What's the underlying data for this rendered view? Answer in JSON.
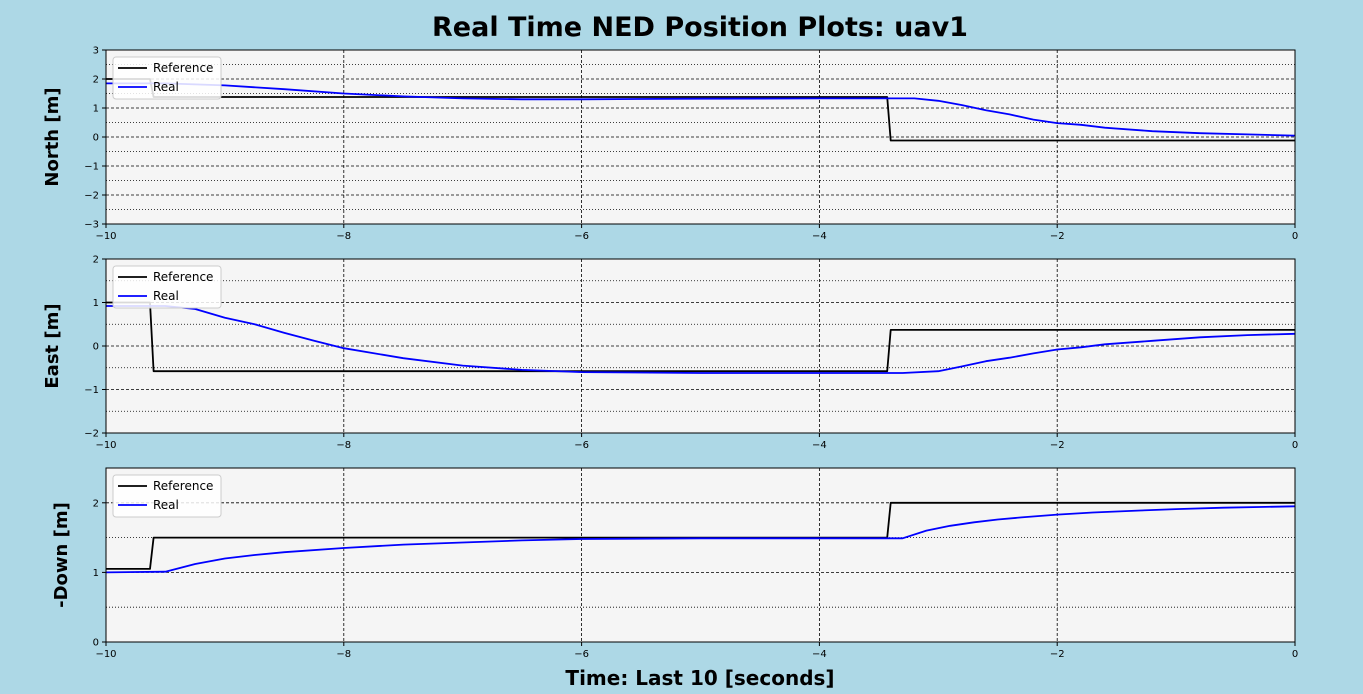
{
  "figure": {
    "title": "Real Time NED Position Plots: uav1",
    "xlabel": "Time: Last 10 [seconds]",
    "background": "#add8e6",
    "axes_background": "#f5f5f5"
  },
  "chart_data": [
    {
      "type": "line",
      "ylabel": "North [m]",
      "xlim": [
        -10,
        0
      ],
      "ylim": [
        -3,
        3
      ],
      "xticks": [
        -10,
        -8,
        -6,
        -4,
        -2,
        0
      ],
      "xtick_labels": [
        "−10",
        "−8",
        "−6",
        "−4",
        "−2",
        "0"
      ],
      "yticks": [
        -3,
        -2,
        -1,
        0,
        1,
        2,
        3
      ],
      "ytick_labels": [
        "−3",
        "−2",
        "−1",
        "0",
        "1",
        "2",
        "3"
      ],
      "major_ygrid": [
        -2,
        -1,
        0,
        1,
        2
      ],
      "minor_ygrid": [
        -2.5,
        -1.5,
        -0.5,
        0.5,
        1.5,
        2.5
      ],
      "grid": true,
      "legend": "top-left",
      "series": [
        {
          "name": "Reference",
          "color": "#000000",
          "x": [
            -10,
            -9.63,
            -9.6,
            -3.43,
            -3.4,
            0
          ],
          "y": [
            2.0,
            2.0,
            1.38,
            1.38,
            -0.12,
            -0.12
          ]
        },
        {
          "name": "Real",
          "color": "#0000ff",
          "x": [
            -10,
            -9.5,
            -9.0,
            -8.5,
            -8.0,
            -7.5,
            -7.0,
            -6.5,
            -6.0,
            -5.0,
            -4.0,
            -3.2,
            -3.0,
            -2.8,
            -2.6,
            -2.4,
            -2.2,
            -2.0,
            -1.8,
            -1.6,
            -1.2,
            -0.8,
            -0.4,
            0
          ],
          "y": [
            1.85,
            1.85,
            1.78,
            1.65,
            1.5,
            1.4,
            1.33,
            1.3,
            1.3,
            1.32,
            1.33,
            1.33,
            1.25,
            1.1,
            0.92,
            0.78,
            0.6,
            0.48,
            0.42,
            0.32,
            0.2,
            0.13,
            0.09,
            0.05
          ]
        }
      ]
    },
    {
      "type": "line",
      "ylabel": "East [m]",
      "xlim": [
        -10,
        0
      ],
      "ylim": [
        -2,
        2
      ],
      "xticks": [
        -10,
        -8,
        -6,
        -4,
        -2,
        0
      ],
      "xtick_labels": [
        "−10",
        "−8",
        "−6",
        "−4",
        "−2",
        "0"
      ],
      "yticks": [
        -2,
        -1,
        0,
        1,
        2
      ],
      "ytick_labels": [
        "−2",
        "−1",
        "0",
        "1",
        "2"
      ],
      "major_ygrid": [
        -1,
        0,
        1
      ],
      "minor_ygrid": [
        -1.5,
        -0.5,
        0.5,
        1.5
      ],
      "grid": true,
      "legend": "top-left",
      "series": [
        {
          "name": "Reference",
          "color": "#000000",
          "x": [
            -10,
            -9.63,
            -9.6,
            -3.43,
            -3.4,
            0
          ],
          "y": [
            1.0,
            1.0,
            -0.58,
            -0.58,
            0.37,
            0.37
          ]
        },
        {
          "name": "Real",
          "color": "#0000ff",
          "x": [
            -10,
            -9.5,
            -9.25,
            -9.0,
            -8.75,
            -8.5,
            -8.25,
            -8.0,
            -7.5,
            -7.0,
            -6.5,
            -6.0,
            -5.0,
            -4.0,
            -3.3,
            -3.0,
            -2.8,
            -2.6,
            -2.4,
            -2.2,
            -2.0,
            -1.8,
            -1.6,
            -1.2,
            -0.8,
            -0.4,
            0
          ],
          "y": [
            0.92,
            0.92,
            0.85,
            0.65,
            0.5,
            0.3,
            0.12,
            -0.05,
            -0.28,
            -0.45,
            -0.55,
            -0.6,
            -0.62,
            -0.62,
            -0.62,
            -0.58,
            -0.47,
            -0.35,
            -0.27,
            -0.17,
            -0.08,
            -0.03,
            0.04,
            0.12,
            0.2,
            0.25,
            0.28
          ]
        }
      ]
    },
    {
      "type": "line",
      "ylabel": "-Down [m]",
      "xlim": [
        -10,
        0
      ],
      "ylim": [
        0,
        2.5
      ],
      "xticks": [
        -10,
        -8,
        -6,
        -4,
        -2,
        0
      ],
      "xtick_labels": [
        "−10",
        "−8",
        "−6",
        "−4",
        "−2",
        "0"
      ],
      "yticks": [
        0,
        1,
        2
      ],
      "ytick_labels": [
        "0",
        "1",
        "2"
      ],
      "major_ygrid": [
        1,
        2
      ],
      "minor_ygrid": [
        0.5,
        1.5
      ],
      "grid": true,
      "legend": "top-left",
      "series": [
        {
          "name": "Reference",
          "color": "#000000",
          "x": [
            -10,
            -9.63,
            -9.6,
            -3.43,
            -3.4,
            0
          ],
          "y": [
            1.05,
            1.05,
            1.5,
            1.5,
            2.0,
            2.0
          ]
        },
        {
          "name": "Real",
          "color": "#0000ff",
          "x": [
            -10,
            -9.5,
            -9.25,
            -9.0,
            -8.75,
            -8.5,
            -8.0,
            -7.5,
            -7.0,
            -6.5,
            -6.0,
            -5.0,
            -4.0,
            -3.3,
            -3.1,
            -2.9,
            -2.7,
            -2.5,
            -2.3,
            -2.0,
            -1.7,
            -1.3,
            -1.0,
            -0.6,
            -0.3,
            0
          ],
          "y": [
            1.0,
            1.01,
            1.12,
            1.2,
            1.25,
            1.29,
            1.35,
            1.4,
            1.43,
            1.46,
            1.48,
            1.49,
            1.49,
            1.49,
            1.6,
            1.67,
            1.72,
            1.76,
            1.79,
            1.83,
            1.86,
            1.89,
            1.91,
            1.93,
            1.94,
            1.95
          ]
        }
      ]
    }
  ]
}
